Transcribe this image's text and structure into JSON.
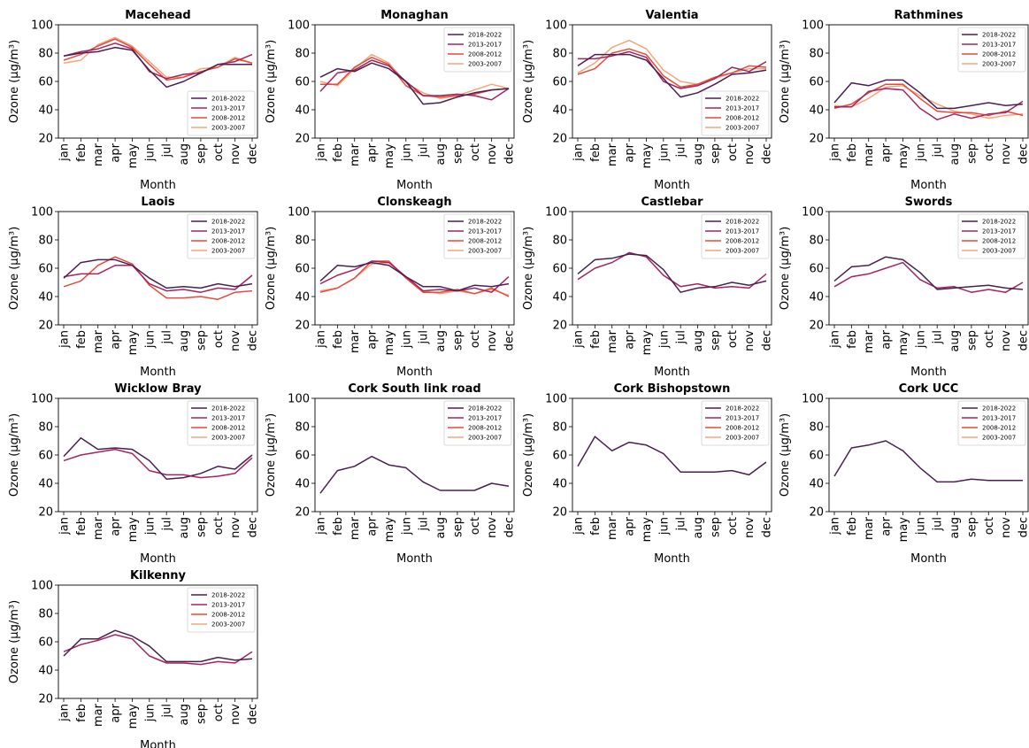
{
  "chart_data": {
    "type": "line",
    "common": {
      "categories": [
        "jan",
        "feb",
        "mar",
        "apr",
        "may",
        "jun",
        "jul",
        "aug",
        "sep",
        "oct",
        "nov",
        "dec"
      ],
      "xlabel": "Month",
      "ylabel": "Ozone (µg/m³)",
      "ylim": [
        20,
        100
      ],
      "yticks": [
        20,
        40,
        60,
        80,
        100
      ],
      "legend_labels": [
        "2018-2022",
        "2013-2017",
        "2008-2012",
        "2003-2007"
      ],
      "series_colors": [
        "#4a2050",
        "#a3245e",
        "#e84a3c",
        "#f4a57a"
      ],
      "legend_placement": "top-right / bottom-right",
      "grid": false
    },
    "panels": [
      {
        "title": "Macehead",
        "legend": "bottom-right",
        "series": [
          {
            "name": "2018-2022",
            "values": [
              78,
              80,
              81,
              84,
              82,
              68,
              56,
              60,
              66,
              72,
              72,
              72
            ]
          },
          {
            "name": "2013-2017",
            "values": [
              78,
              81,
              83,
              87,
              83,
              67,
              62,
              65,
              66,
              72,
              74,
              79
            ]
          },
          {
            "name": "2008-2012",
            "values": [
              75,
              79,
              85,
              90,
              84,
              72,
              61,
              63,
              67,
              70,
              76,
              73
            ]
          },
          {
            "name": "2003-2007",
            "values": [
              73,
              75,
              86,
              91,
              85,
              74,
              63,
              63,
              69,
              70,
              77,
              73
            ]
          }
        ]
      },
      {
        "title": "Monaghan",
        "legend": "top-right",
        "series": [
          {
            "name": "2018-2022",
            "values": [
              63,
              69,
              67,
              73,
              69,
              60,
              44,
              45,
              49,
              52,
              54,
              55
            ]
          },
          {
            "name": "2013-2017",
            "values": [
              53,
              66,
              68,
              75,
              71,
              60,
              50,
              50,
              51,
              50,
              47,
              55
            ]
          },
          {
            "name": "2008-2012",
            "values": [
              58,
              58,
              70,
              77,
              72,
              57,
              50,
              49,
              50,
              51,
              54,
              55
            ]
          },
          {
            "name": "2003-2007",
            "values": [
              60,
              57,
              69,
              79,
              73,
              59,
              52,
              48,
              50,
              54,
              58,
              55
            ]
          }
        ]
      },
      {
        "title": "Valentia",
        "legend": "bottom-right",
        "series": [
          {
            "name": "2018-2022",
            "values": [
              71,
              79,
              79,
              79,
              75,
              62,
              49,
              52,
              58,
              65,
              66,
              68
            ]
          },
          {
            "name": "2013-2017",
            "values": [
              76,
              76,
              78,
              81,
              77,
              60,
              55,
              57,
              62,
              70,
              67,
              74
            ]
          },
          {
            "name": "2008-2012",
            "values": [
              65,
              69,
              80,
              83,
              79,
              64,
              56,
              58,
              63,
              66,
              71,
              70
            ]
          },
          {
            "name": "2003-2007",
            "values": [
              66,
              73,
              84,
              89,
              83,
              68,
              60,
              58,
              62,
              66,
              69,
              69
            ]
          }
        ]
      },
      {
        "title": "Rathmines",
        "legend": "top-right",
        "series": [
          {
            "name": "2018-2022",
            "values": [
              45,
              59,
              57,
              61,
              61,
              52,
              41,
              41,
              43,
              45,
              43,
              44
            ]
          },
          {
            "name": "2013-2017",
            "values": [
              42,
              42,
              53,
              55,
              54,
              41,
              33,
              37,
              34,
              37,
              38,
              46
            ]
          },
          {
            "name": "2008-2012",
            "values": [
              41,
              44,
              52,
              58,
              58,
              48,
              39,
              38,
              38,
              36,
              39,
              36
            ]
          },
          {
            "name": "2003-2007",
            "values": [
              43,
              42,
              48,
              56,
              57,
              50,
              44,
              39,
              37,
              34,
              36,
              37
            ]
          }
        ]
      },
      {
        "title": "Laois",
        "legend": "top-right",
        "series": [
          {
            "name": "2018-2022",
            "values": [
              53,
              64,
              66,
              66,
              62,
              53,
              46,
              47,
              46,
              49,
              47,
              49
            ]
          },
          {
            "name": "2013-2017",
            "values": [
              54,
              56,
              56,
              62,
              62,
              49,
              44,
              45,
              43,
              46,
              45,
              55
            ]
          },
          {
            "name": "2008-2012",
            "values": [
              47,
              51,
              62,
              68,
              63,
              48,
              39,
              39,
              40,
              38,
              43,
              44
            ]
          }
        ]
      },
      {
        "title": "Clonskeagh",
        "legend": "top-right",
        "series": [
          {
            "name": "2018-2022",
            "values": [
              51,
              62,
              61,
              64,
              62,
              54,
              47,
              47,
              44,
              48,
              47,
              49
            ]
          },
          {
            "name": "2013-2017",
            "values": [
              49,
              55,
              59,
              65,
              64,
              54,
              44,
              45,
              44,
              46,
              43,
              54
            ]
          },
          {
            "name": "2008-2012",
            "values": [
              43,
              46,
              53,
              65,
              65,
              53,
              43,
              43,
              45,
              42,
              46,
              40
            ]
          },
          {
            "name": "2003-2007",
            "values": [
              44,
              46,
              53,
              63,
              64,
              54,
              44,
              42,
              44,
              42,
              45,
              41
            ]
          }
        ]
      },
      {
        "title": "Castlebar",
        "legend": "top-right",
        "series": [
          {
            "name": "2018-2022",
            "values": [
              56,
              66,
              67,
              70,
              69,
              59,
              43,
              46,
              47,
              50,
              48,
              51
            ]
          },
          {
            "name": "2013-2017",
            "values": [
              52,
              60,
              64,
              71,
              68,
              55,
              47,
              49,
              46,
              47,
              46,
              56
            ]
          }
        ]
      },
      {
        "title": "Swords",
        "legend": "top-right",
        "series": [
          {
            "name": "2018-2022",
            "values": [
              51,
              61,
              62,
              68,
              66,
              57,
              45,
              46,
              47,
              48,
              46,
              45
            ]
          },
          {
            "name": "2013-2017",
            "values": [
              47,
              54,
              56,
              60,
              64,
              52,
              46,
              47,
              43,
              45,
              43,
              50
            ]
          }
        ]
      },
      {
        "title": "Wicklow Bray",
        "legend": "top-right",
        "series": [
          {
            "name": "2018-2022",
            "values": [
              59,
              72,
              64,
              65,
              64,
              56,
              43,
              44,
              47,
              52,
              50,
              60
            ]
          },
          {
            "name": "2013-2017",
            "values": [
              56,
              60,
              62,
              64,
              61,
              49,
              46,
              46,
              44,
              45,
              47,
              58
            ]
          }
        ]
      },
      {
        "title": "Cork South link road",
        "legend": "top-right",
        "series": [
          {
            "name": "2018-2022",
            "values": [
              33,
              49,
              52,
              59,
              53,
              51,
              41,
              35,
              35,
              35,
              40,
              38
            ]
          }
        ]
      },
      {
        "title": "Cork Bishopstown",
        "legend": "top-right",
        "series": [
          {
            "name": "2018-2022",
            "values": [
              52,
              73,
              63,
              69,
              67,
              61,
              48,
              48,
              48,
              49,
              46,
              55
            ]
          }
        ]
      },
      {
        "title": "Cork UCC",
        "legend": "top-right",
        "series": [
          {
            "name": "2018-2022",
            "values": [
              45,
              65,
              67,
              70,
              63,
              51,
              41,
              41,
              43,
              42,
              42,
              42
            ]
          }
        ]
      },
      {
        "title": "Kilkenny",
        "legend": "top-right",
        "series": [
          {
            "name": "2018-2022",
            "values": [
              50,
              62,
              62,
              68,
              64,
              57,
              46,
              46,
              46,
              49,
              47,
              48
            ]
          },
          {
            "name": "2013-2017",
            "values": [
              53,
              58,
              61,
              65,
              62,
              50,
              45,
              45,
              44,
              46,
              45,
              53
            ]
          }
        ]
      }
    ]
  }
}
